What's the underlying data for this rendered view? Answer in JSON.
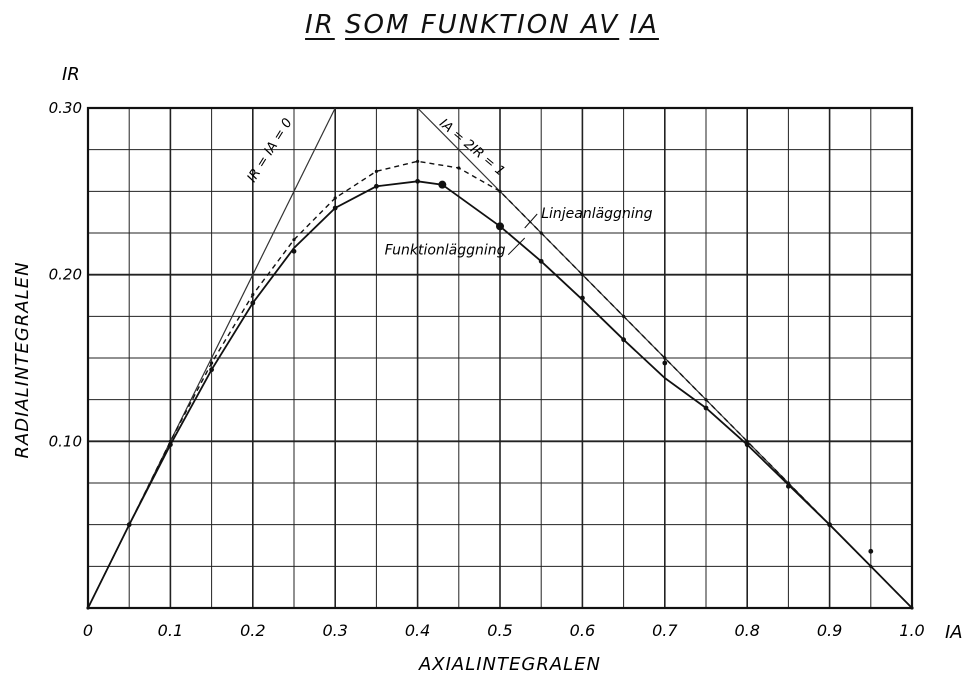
{
  "title": {
    "part1": "IR",
    "part2": "SOM FUNKTION AV",
    "part3": "IA"
  },
  "chart_data": {
    "type": "line",
    "xlabel": "AXIALINTEGRALEN",
    "ylabel": "RADIALINTEGRALEN",
    "x_axis_symbol": "IA",
    "y_axis_symbol": "IR",
    "xlim": [
      0,
      1.0
    ],
    "ylim": [
      0,
      0.3
    ],
    "grid": true,
    "x_ticks": [
      {
        "value": 0.0,
        "label": "0"
      },
      {
        "value": 0.1,
        "label": "0.1"
      },
      {
        "value": 0.2,
        "label": "0.2"
      },
      {
        "value": 0.3,
        "label": "0.3"
      },
      {
        "value": 0.4,
        "label": "0.4"
      },
      {
        "value": 0.5,
        "label": "0.5"
      },
      {
        "value": 0.6,
        "label": "0.6"
      },
      {
        "value": 0.7,
        "label": "0.7"
      },
      {
        "value": 0.8,
        "label": "0.8"
      },
      {
        "value": 0.9,
        "label": "0.9"
      },
      {
        "value": 1.0,
        "label": "1.0"
      }
    ],
    "y_ticks": [
      {
        "value": 0.1,
        "label": "0.10"
      },
      {
        "value": 0.2,
        "label": "0.20"
      },
      {
        "value": 0.3,
        "label": "0.30"
      }
    ],
    "series": [
      {
        "name": "Funktionläggning",
        "style": "solid",
        "x": [
          0.0,
          0.05,
          0.1,
          0.15,
          0.2,
          0.25,
          0.3,
          0.35,
          0.4,
          0.43,
          0.5,
          0.55,
          0.6,
          0.65,
          0.7,
          0.75,
          0.8,
          0.85,
          0.9,
          0.95,
          1.0
        ],
        "y": [
          0.0,
          0.05,
          0.098,
          0.143,
          0.183,
          0.216,
          0.24,
          0.253,
          0.256,
          0.254,
          0.229,
          0.208,
          0.185,
          0.161,
          0.138,
          0.12,
          0.098,
          0.074,
          0.05,
          0.025,
          0.0
        ]
      },
      {
        "name": "Linjeanläggning",
        "style": "dashed",
        "x": [
          0.0,
          0.05,
          0.1,
          0.15,
          0.2,
          0.25,
          0.3,
          0.35,
          0.4,
          0.45,
          0.5,
          0.55,
          0.6,
          0.65,
          0.7,
          0.75,
          0.8,
          0.85,
          0.9,
          0.95,
          1.0
        ],
        "y": [
          0.0,
          0.05,
          0.1,
          0.147,
          0.188,
          0.221,
          0.246,
          0.262,
          0.268,
          0.264,
          0.25,
          0.225,
          0.2,
          0.175,
          0.15,
          0.125,
          0.1,
          0.075,
          0.05,
          0.025,
          0.0
        ]
      },
      {
        "name": "Funktionläggning points",
        "style": "markers",
        "x": [
          0.05,
          0.1,
          0.15,
          0.2,
          0.25,
          0.3,
          0.35,
          0.4,
          0.43,
          0.5,
          0.55,
          0.6,
          0.65,
          0.7,
          0.75,
          0.8,
          0.85,
          0.9,
          0.95
        ],
        "y": [
          0.05,
          0.098,
          0.143,
          0.183,
          0.214,
          0.24,
          0.253,
          0.256,
          0.254,
          0.229,
          0.208,
          0.186,
          0.161,
          0.147,
          0.12,
          0.098,
          0.073,
          0.05,
          0.034
        ]
      }
    ],
    "annotations": [
      {
        "text": "IR = IA = 0",
        "x": 0.25,
        "y": 0.255
      },
      {
        "text": "IA = 2IR = 1",
        "x": 0.45,
        "y": 0.278
      },
      {
        "text": "Linjeanläggning",
        "x": 0.55,
        "y": 0.234
      },
      {
        "text": "Funktionläggning",
        "x": 0.36,
        "y": 0.212
      }
    ]
  }
}
